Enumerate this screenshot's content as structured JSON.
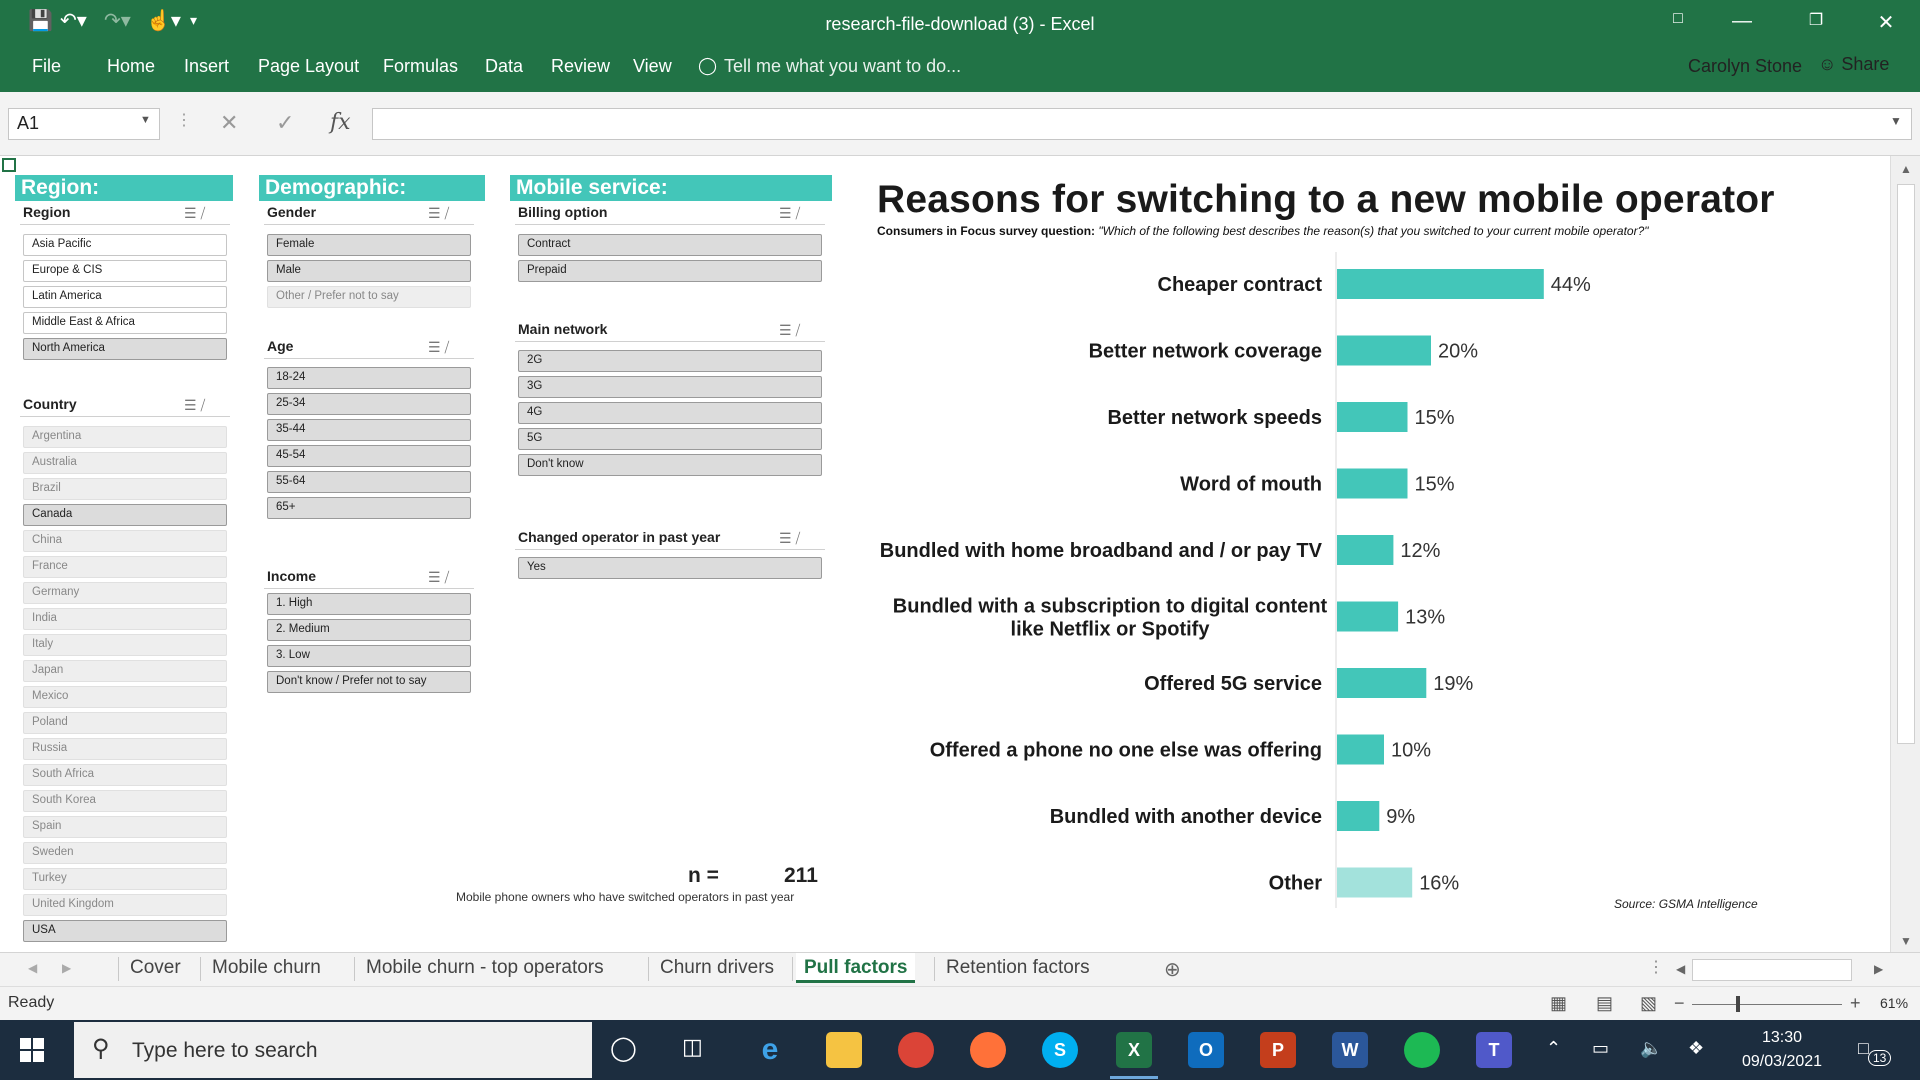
{
  "window": {
    "title": "research-file-download (3) - Excel",
    "user": "Carolyn Stone",
    "share_label": "Share",
    "tell_me": "Tell me what you want to do..."
  },
  "ribbon_tabs": [
    "File",
    "Home",
    "Insert",
    "Page Layout",
    "Formulas",
    "Data",
    "Review",
    "View"
  ],
  "formula_bar": {
    "cell_ref": "A1",
    "value": ""
  },
  "panels": {
    "region_header": "Region:",
    "demographic_header": "Demographic:",
    "mobile_header": "Mobile service:"
  },
  "slicers": {
    "region": {
      "title": "Region",
      "items": [
        "Asia Pacific",
        "Europe & CIS",
        "Latin America",
        "Middle East & Africa",
        "North America"
      ]
    },
    "country": {
      "title": "Country",
      "items": [
        "Argentina",
        "Australia",
        "Brazil",
        "Canada",
        "China",
        "France",
        "Germany",
        "India",
        "Italy",
        "Japan",
        "Mexico",
        "Poland",
        "Russia",
        "South Africa",
        "South Korea",
        "Spain",
        "Sweden",
        "Turkey",
        "United Kingdom",
        "USA"
      ]
    },
    "gender": {
      "title": "Gender",
      "items": [
        "Female",
        "Male",
        "Other / Prefer not to say"
      ]
    },
    "age": {
      "title": "Age",
      "items": [
        "18-24",
        "25-34",
        "35-44",
        "45-54",
        "55-64",
        "65+"
      ]
    },
    "income": {
      "title": "Income",
      "items": [
        "1. High",
        "2. Medium",
        "3. Low",
        "Don't know / Prefer not to say"
      ]
    },
    "billing": {
      "title": "Billing option",
      "items": [
        "Contract",
        "Prepaid"
      ]
    },
    "network": {
      "title": "Main network",
      "items": [
        "2G",
        "3G",
        "4G",
        "5G",
        "Don't know"
      ]
    },
    "changed": {
      "title": "Changed operator in past year",
      "items": [
        "Yes"
      ]
    }
  },
  "sample": {
    "n_label": "n =",
    "n_value": "211",
    "note": "Mobile phone owners who have switched operators in past year"
  },
  "chart_title": "Reasons for switching to a new mobile operator",
  "chart_subtitle_bold": "Consumers in Focus survey question:",
  "chart_subtitle_italic": "\"Which of the following best describes the reason(s) that you switched to your current mobile operator?\"",
  "source": "Source: GSMA Intelligence",
  "colors": {
    "bar": "#43c6b9",
    "bar_other": "#a3e2dc",
    "accent": "#217346"
  },
  "chart_data": {
    "type": "bar",
    "orientation": "horizontal",
    "title": "Reasons for switching to a new mobile operator",
    "categories": [
      "Cheaper contract",
      "Better network coverage",
      "Better network speeds",
      "Word of mouth",
      "Bundled with home broadband and / or pay TV",
      "Bundled with a subscription to digital content like Netflix or Spotify",
      "Offered 5G service",
      "Offered a phone no one else was offering",
      "Bundled with another device",
      "Other"
    ],
    "category_lines": [
      [
        "Cheaper contract"
      ],
      [
        "Better network coverage"
      ],
      [
        "Better network speeds"
      ],
      [
        "Word of mouth"
      ],
      [
        "Bundled with home broadband and / or pay TV"
      ],
      [
        "Bundled with a subscription to digital content",
        "like Netflix or Spotify"
      ],
      [
        "Offered 5G service"
      ],
      [
        "Offered a phone no one else was offering"
      ],
      [
        "Bundled with another device"
      ],
      [
        "Other"
      ]
    ],
    "values": [
      44,
      20,
      15,
      15,
      12,
      13,
      19,
      10,
      9,
      16
    ],
    "labels": [
      "44%",
      "20%",
      "15%",
      "15%",
      "12%",
      "13%",
      "19%",
      "10%",
      "9%",
      "16%"
    ],
    "xlim": [
      0,
      100
    ],
    "grid": false,
    "legend": false
  },
  "sheet_tabs": [
    "Cover",
    "Mobile churn",
    "Mobile churn - top operators",
    "Churn drivers",
    "Pull factors",
    "Retention factors"
  ],
  "active_sheet": "Pull factors",
  "status": {
    "ready": "Ready",
    "zoom": "61%"
  },
  "taskbar": {
    "search_placeholder": "Type here to search",
    "time": "13:30",
    "date": "09/03/2021",
    "notifications": "13"
  }
}
